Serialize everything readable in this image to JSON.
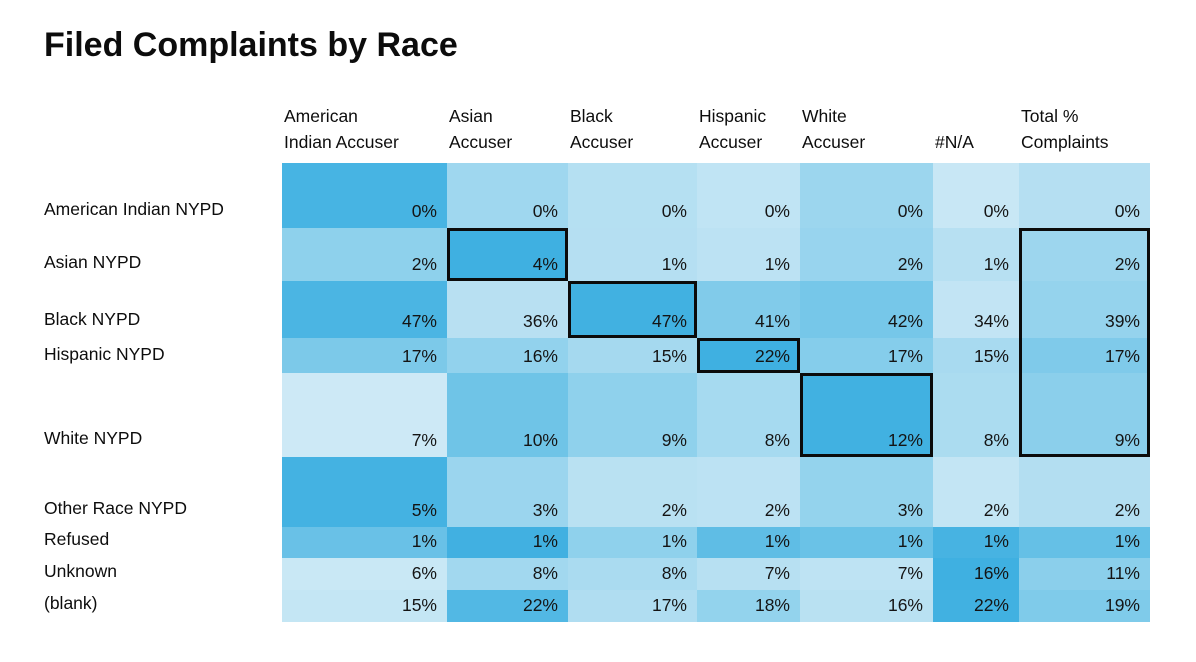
{
  "title": "Filed Complaints by Race",
  "heatmap": {
    "columns": [
      {
        "label_lines": [
          "American",
          "Indian Accuser"
        ]
      },
      {
        "label_lines": [
          "Asian",
          "Accuser"
        ]
      },
      {
        "label_lines": [
          "Black",
          "Accuser"
        ]
      },
      {
        "label_lines": [
          "Hispanic",
          "Accuser"
        ]
      },
      {
        "label_lines": [
          "White",
          "Accuser"
        ]
      },
      {
        "label_lines": [
          "#N/A"
        ]
      },
      {
        "label_lines": [
          "Total %",
          "Complaints"
        ]
      }
    ],
    "rows": [
      {
        "label": "American Indian NYPD",
        "cells": [
          {
            "value": "0%",
            "color": "#47b4e3"
          },
          {
            "value": "0%",
            "color": "#9fd7ef"
          },
          {
            "value": "0%",
            "color": "#b5e0f2"
          },
          {
            "value": "0%",
            "color": "#c0e4f4"
          },
          {
            "value": "0%",
            "color": "#9cd6ee"
          },
          {
            "value": "0%",
            "color": "#c8e7f5"
          },
          {
            "value": "0%",
            "color": "#b5dff2"
          }
        ]
      },
      {
        "label": "Asian NYPD",
        "cells": [
          {
            "value": "2%",
            "color": "#8ed1ec"
          },
          {
            "value": "4%",
            "color": "#3fb0e1"
          },
          {
            "value": "1%",
            "color": "#b5dff2"
          },
          {
            "value": "1%",
            "color": "#bce2f3"
          },
          {
            "value": "2%",
            "color": "#98d4ee"
          },
          {
            "value": "1%",
            "color": "#b7e0f2"
          },
          {
            "value": "2%",
            "color": "#9dd6ee"
          }
        ]
      },
      {
        "label": "Black NYPD",
        "cells": [
          {
            "value": "47%",
            "color": "#4bb5e3"
          },
          {
            "value": "36%",
            "color": "#b8e0f2"
          },
          {
            "value": "47%",
            "color": "#41b1e1"
          },
          {
            "value": "41%",
            "color": "#81cbea"
          },
          {
            "value": "42%",
            "color": "#76c7e9"
          },
          {
            "value": "34%",
            "color": "#c2e4f4"
          },
          {
            "value": "39%",
            "color": "#95d3ed"
          }
        ]
      },
      {
        "label": "Hispanic NYPD",
        "cells": [
          {
            "value": "17%",
            "color": "#7cc9e9"
          },
          {
            "value": "16%",
            "color": "#92d2ed"
          },
          {
            "value": "15%",
            "color": "#a5d9ef"
          },
          {
            "value": "22%",
            "color": "#3fb0e1"
          },
          {
            "value": "17%",
            "color": "#85cdeb"
          },
          {
            "value": "15%",
            "color": "#a8daf0"
          },
          {
            "value": "17%",
            "color": "#7fcaea"
          }
        ]
      },
      {
        "label": "White NYPD",
        "cells": [
          {
            "value": "7%",
            "color": "#cde9f6"
          },
          {
            "value": "10%",
            "color": "#6fc4e7"
          },
          {
            "value": "9%",
            "color": "#8fd1ec"
          },
          {
            "value": "8%",
            "color": "#a6daf0"
          },
          {
            "value": "12%",
            "color": "#41b1e1"
          },
          {
            "value": "8%",
            "color": "#abdcf0"
          },
          {
            "value": "9%",
            "color": "#8bcfeb"
          }
        ]
      },
      {
        "label": "Other Race NYPD",
        "cells": [
          {
            "value": "5%",
            "color": "#44b2e2"
          },
          {
            "value": "3%",
            "color": "#9bd5ee"
          },
          {
            "value": "2%",
            "color": "#b9e1f2"
          },
          {
            "value": "2%",
            "color": "#bce2f3"
          },
          {
            "value": "3%",
            "color": "#94d3ed"
          },
          {
            "value": "2%",
            "color": "#c3e5f4"
          },
          {
            "value": "2%",
            "color": "#b3def1"
          }
        ]
      },
      {
        "label": "Refused",
        "cells": [
          {
            "value": "1%",
            "color": "#69c1e7"
          },
          {
            "value": "1%",
            "color": "#41b0e1"
          },
          {
            "value": "1%",
            "color": "#8fd1ec"
          },
          {
            "value": "1%",
            "color": "#5fbde5"
          },
          {
            "value": "1%",
            "color": "#6ac2e7"
          },
          {
            "value": "1%",
            "color": "#47b3e2"
          },
          {
            "value": "1%",
            "color": "#65c0e6"
          }
        ]
      },
      {
        "label": "Unknown",
        "cells": [
          {
            "value": "6%",
            "color": "#c9e8f5"
          },
          {
            "value": "8%",
            "color": "#a2d8ef"
          },
          {
            "value": "8%",
            "color": "#aadbf0"
          },
          {
            "value": "7%",
            "color": "#b7e0f2"
          },
          {
            "value": "7%",
            "color": "#bee3f3"
          },
          {
            "value": "16%",
            "color": "#3fb0e1"
          },
          {
            "value": "11%",
            "color": "#8bcfeb"
          }
        ]
      },
      {
        "label": "(blank)",
        "cells": [
          {
            "value": "15%",
            "color": "#c4e6f4"
          },
          {
            "value": "22%",
            "color": "#52b8e4"
          },
          {
            "value": "17%",
            "color": "#b0ddf1"
          },
          {
            "value": "18%",
            "color": "#93d3ed"
          },
          {
            "value": "16%",
            "color": "#b9e1f2"
          },
          {
            "value": "22%",
            "color": "#41b1e1"
          },
          {
            "value": "19%",
            "color": "#7fcbea"
          }
        ]
      }
    ],
    "diagonal_outlines": [
      [
        1,
        1
      ],
      [
        2,
        2
      ],
      [
        3,
        3
      ],
      [
        4,
        4
      ]
    ],
    "total_column_box": {
      "col": 6,
      "row_start": 1,
      "row_end": 4
    }
  },
  "chart_data": {
    "type": "heatmap",
    "title": "Filed Complaints by Race",
    "columns": [
      "American Indian Accuser",
      "Asian Accuser",
      "Black Accuser",
      "Hispanic Accuser",
      "White Accuser",
      "#N/A",
      "Total % Complaints"
    ],
    "rows": [
      "American Indian NYPD",
      "Asian NYPD",
      "Black NYPD",
      "Hispanic NYPD",
      "White NYPD",
      "Other Race NYPD",
      "Refused",
      "Unknown",
      "(blank)"
    ],
    "values_percent": [
      [
        0,
        0,
        0,
        0,
        0,
        0,
        0
      ],
      [
        2,
        4,
        1,
        1,
        2,
        1,
        2
      ],
      [
        47,
        36,
        47,
        41,
        42,
        34,
        39
      ],
      [
        17,
        16,
        15,
        22,
        17,
        15,
        17
      ],
      [
        7,
        10,
        9,
        8,
        12,
        8,
        9
      ],
      [
        5,
        3,
        2,
        2,
        3,
        2,
        2
      ],
      [
        1,
        1,
        1,
        1,
        1,
        1,
        1
      ],
      [
        6,
        8,
        8,
        7,
        7,
        16,
        11
      ],
      [
        15,
        22,
        17,
        18,
        16,
        22,
        19
      ]
    ],
    "highlighted_diagonal_cells": [
      [
        "Asian NYPD",
        "Asian Accuser"
      ],
      [
        "Black NYPD",
        "Black Accuser"
      ],
      [
        "Hispanic NYPD",
        "Hispanic Accuser"
      ],
      [
        "White NYPD",
        "White Accuser"
      ]
    ],
    "highlighted_column_box": {
      "column": "Total % Complaints",
      "rows": [
        "Asian NYPD",
        "Black NYPD",
        "Hispanic NYPD",
        "White NYPD"
      ]
    },
    "color_scale": {
      "low": "#cdeaf6",
      "high": "#3fb0e1",
      "note": "blue shading scaled within each row"
    },
    "legend": "none",
    "grid": false
  }
}
